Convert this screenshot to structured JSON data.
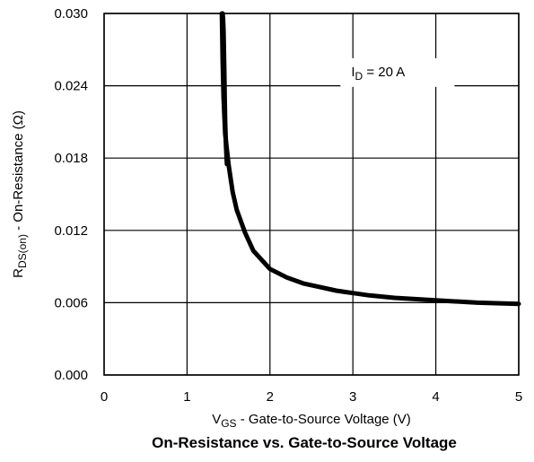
{
  "chart_data": {
    "type": "line",
    "title": "On-Resistance vs. Gate-to-Source Voltage",
    "xlabel": {
      "symbol": "V",
      "subscript": "GS",
      "text": " -  Gate-to-Source Voltage (V)"
    },
    "ylabel": {
      "symbol": "R",
      "subscript": "DS(on)",
      "text": "  -  On-Resistance (Ω)"
    },
    "xlim": [
      0,
      5
    ],
    "ylim": [
      0,
      0.03
    ],
    "x_ticks": [
      0,
      1,
      2,
      3,
      4,
      5
    ],
    "x_tick_labels": [
      "0",
      "1",
      "2",
      "3",
      "4",
      "5"
    ],
    "y_ticks": [
      0,
      0.006,
      0.012,
      0.018,
      0.024,
      0.03
    ],
    "y_tick_labels": [
      "0.000",
      "0.006",
      "0.012",
      "0.018",
      "0.024",
      "0.030"
    ],
    "grid": true,
    "annotation": {
      "symbol": "I",
      "subscript": "D",
      "text": " =  20 A",
      "x": 2.98,
      "y": 0.0248
    },
    "series": [
      {
        "color": "#000000",
        "x": [
          1.48,
          1.47,
          1.46,
          1.455,
          1.45,
          1.445,
          1.44,
          1.435,
          1.43
        ],
        "y": [
          0.0175,
          0.019,
          0.021,
          0.023,
          0.025,
          0.027,
          0.0285,
          0.0295,
          0.03
        ]
      },
      {
        "color": "#000000",
        "x": [
          1.42,
          1.43,
          1.44,
          1.46,
          1.5,
          1.55,
          1.6,
          1.7,
          1.8,
          2.0,
          2.2,
          2.4,
          2.6,
          2.8,
          3.0,
          3.2,
          3.5,
          4.0,
          4.5,
          5.0
        ],
        "y": [
          0.03,
          0.026,
          0.023,
          0.02,
          0.0175,
          0.0152,
          0.0137,
          0.0118,
          0.0103,
          0.0088,
          0.0081,
          0.0076,
          0.0073,
          0.007,
          0.0068,
          0.0066,
          0.0064,
          0.0062,
          0.006,
          0.0059
        ]
      }
    ]
  }
}
